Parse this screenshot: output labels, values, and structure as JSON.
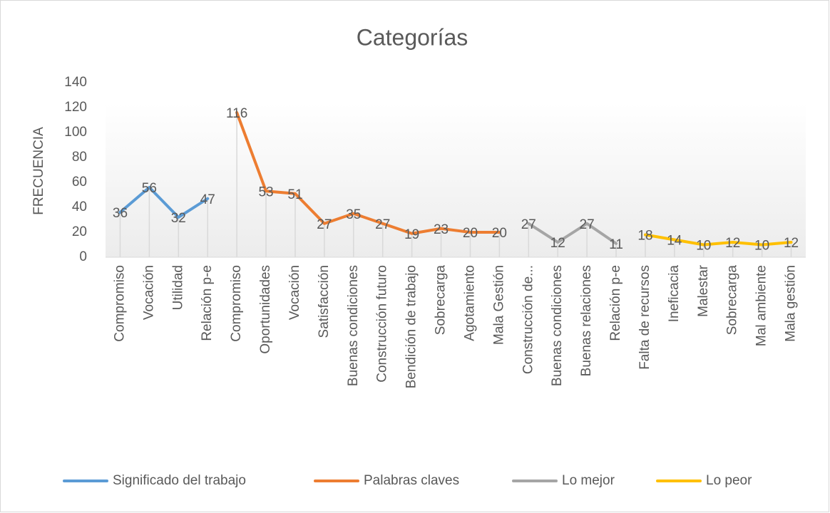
{
  "chart_data": {
    "type": "line",
    "title": "Categorías",
    "y_label": "FRECUENCIA",
    "categories": [
      "Compromiso",
      "Vocación",
      "Utilidad",
      "Relación p-e",
      "Compromiso",
      "Oportunidades",
      "Vocación",
      "Satisfacción",
      "Buenas condiciones",
      "Construcción futuro",
      "Bendición de trabajo",
      "Sobrecarga",
      "Agotamiento",
      "Mala Gestión",
      "Construcción de...",
      "Buenas condiciones",
      "Buenas relaciones",
      "Relación p-e",
      "Falta de recursos",
      "Ineficacia",
      "Malestar",
      "Sobrecarga",
      "Mal ambiente",
      "Mala gestión"
    ],
    "series": [
      {
        "name": "Significado del trabajo",
        "color": "#5b9bd5",
        "values": [
          36,
          56,
          32,
          47,
          null,
          null,
          null,
          null,
          null,
          null,
          null,
          null,
          null,
          null,
          null,
          null,
          null,
          null,
          null,
          null,
          null,
          null,
          null,
          null
        ]
      },
      {
        "name": "Palabras claves",
        "color": "#ed7d31",
        "values": [
          null,
          null,
          null,
          null,
          116,
          53,
          51,
          27,
          35,
          27,
          19,
          23,
          20,
          20,
          null,
          null,
          null,
          null,
          null,
          null,
          null,
          null,
          null,
          null
        ]
      },
      {
        "name": "Lo mejor",
        "color": "#a5a5a5",
        "values": [
          null,
          null,
          null,
          null,
          null,
          null,
          null,
          null,
          null,
          null,
          null,
          null,
          null,
          null,
          27,
          12,
          27,
          11,
          null,
          null,
          null,
          null,
          null,
          null
        ]
      },
      {
        "name": "Lo peor",
        "color": "#ffc000",
        "values": [
          null,
          null,
          null,
          null,
          null,
          null,
          null,
          null,
          null,
          null,
          null,
          null,
          null,
          null,
          null,
          null,
          null,
          null,
          18,
          14,
          10,
          12,
          10,
          12
        ]
      }
    ],
    "ylim": [
      0,
      140
    ],
    "yticks": [
      0,
      20,
      40,
      60,
      80,
      100,
      120,
      140
    ],
    "data_labels": true,
    "drop_lines": true,
    "legend": "bottom"
  }
}
